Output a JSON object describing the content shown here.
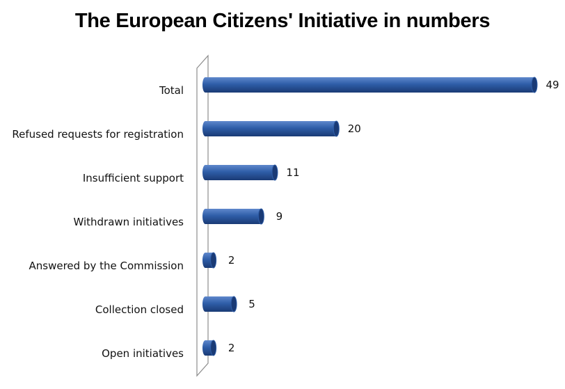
{
  "chart_data": {
    "type": "bar",
    "orientation": "horizontal",
    "title": "The European Citizens' Initiative in numbers",
    "categories": [
      "Total",
      "Refused requests for registration",
      "Insufficient support",
      "Withdrawn initiatives",
      "Answered by the Commission",
      "Collection closed",
      "Open initiatives"
    ],
    "values": [
      49,
      20,
      11,
      9,
      2,
      5,
      2
    ],
    "xlim": [
      0,
      49
    ],
    "grid": false,
    "legend": "none",
    "bar_color": "#2f5ea8",
    "bar_shade": "#1a3a75",
    "bar_highlight": "#5f88cc"
  }
}
